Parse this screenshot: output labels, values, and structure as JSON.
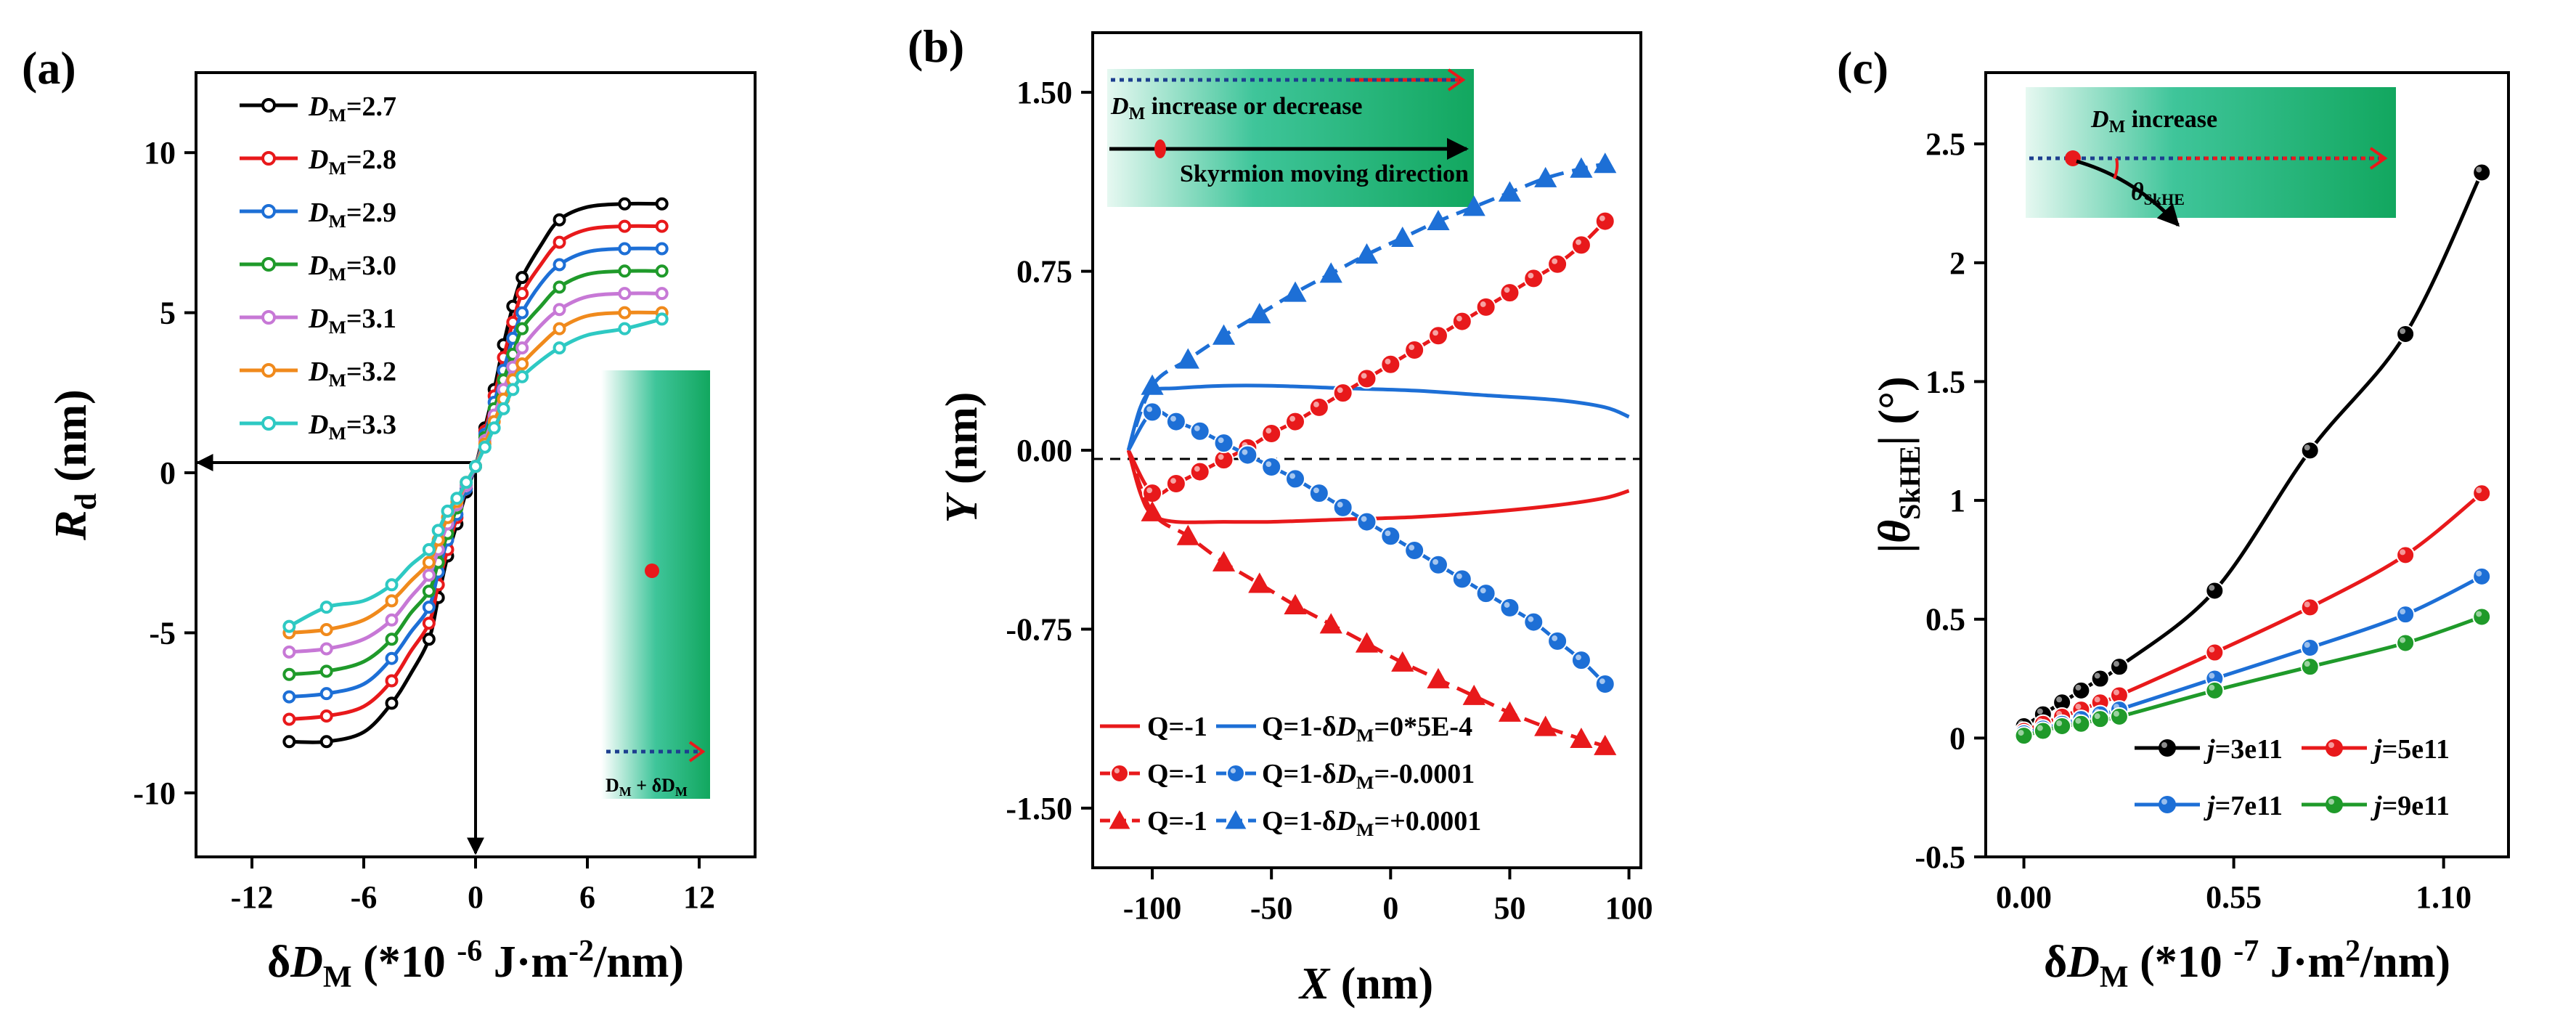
{
  "figure": {
    "panel_a": "(a)",
    "panel_b": "(b)",
    "panel_c": "(c)"
  },
  "chart_data": [
    {
      "type": "line",
      "panel": "(a)",
      "xlabel": "δD_M (*10^-6 J·m^-2/nm)",
      "ylabel": "R_d (nm)",
      "xlim": [
        -15,
        15
      ],
      "ylim": [
        -12,
        12.5
      ],
      "xticks": [
        -12,
        -6,
        0,
        6,
        12
      ],
      "yticks": [
        -10,
        -5,
        0,
        5,
        10
      ],
      "x": [
        -10,
        -8,
        -6,
        -4.5,
        -3.5,
        -2.5,
        -2,
        -1.5,
        -1,
        -0.5,
        0,
        0.5,
        1,
        1.5,
        2,
        2.5,
        3.5,
        4.5,
        6,
        8,
        10
      ],
      "series": [
        {
          "name": "D_M=2.7",
          "color": "#000000",
          "values": [
            -8.4,
            -8.4,
            -8.1,
            -7.2,
            -6.3,
            -5.2,
            -3.9,
            -2.6,
            -1.6,
            -0.6,
            0.2,
            1.4,
            2.6,
            4.0,
            5.2,
            6.1,
            7.1,
            7.9,
            8.3,
            8.4,
            8.4
          ]
        },
        {
          "name": "D_M=2.8",
          "color": "#e8191b",
          "values": [
            -7.7,
            -7.6,
            -7.3,
            -6.5,
            -5.6,
            -4.7,
            -3.5,
            -2.4,
            -1.4,
            -0.5,
            0.2,
            1.3,
            2.4,
            3.6,
            4.7,
            5.6,
            6.5,
            7.2,
            7.6,
            7.7,
            7.7
          ]
        },
        {
          "name": "D_M=2.9",
          "color": "#1d6fd6",
          "values": [
            -7.0,
            -6.9,
            -6.6,
            -5.8,
            -5.0,
            -4.2,
            -3.1,
            -2.1,
            -1.3,
            -0.5,
            0.2,
            1.2,
            2.2,
            3.2,
            4.2,
            5.0,
            5.9,
            6.5,
            6.9,
            7.0,
            7.0
          ]
        },
        {
          "name": "D_M=3.0",
          "color": "#1f9a2a",
          "values": [
            -6.3,
            -6.2,
            -5.9,
            -5.2,
            -4.4,
            -3.7,
            -2.8,
            -1.9,
            -1.1,
            -0.4,
            0.2,
            1.1,
            2.0,
            2.9,
            3.7,
            4.5,
            5.2,
            5.8,
            6.2,
            6.3,
            6.3
          ]
        },
        {
          "name": "D_M=3.1",
          "color": "#c778d6",
          "values": [
            -5.6,
            -5.5,
            -5.2,
            -4.6,
            -3.9,
            -3.2,
            -2.4,
            -1.6,
            -1.0,
            -0.4,
            0.2,
            1.0,
            1.8,
            2.6,
            3.3,
            3.9,
            4.6,
            5.1,
            5.5,
            5.6,
            5.6
          ]
        },
        {
          "name": "D_M=3.2",
          "color": "#f08a1c",
          "values": [
            -5.0,
            -4.9,
            -4.6,
            -4.0,
            -3.4,
            -2.8,
            -2.1,
            -1.4,
            -0.9,
            -0.3,
            0.2,
            0.9,
            1.6,
            2.3,
            2.9,
            3.4,
            4.0,
            4.5,
            4.9,
            5.0,
            5.0
          ]
        },
        {
          "name": "D_M=3.3",
          "color": "#2ec9c3",
          "values": [
            -4.8,
            -4.2,
            -4.0,
            -3.5,
            -2.9,
            -2.4,
            -1.8,
            -1.2,
            -0.8,
            -0.3,
            0.2,
            0.8,
            1.4,
            2.0,
            2.6,
            3.0,
            3.5,
            3.9,
            4.3,
            4.5,
            4.8
          ]
        }
      ],
      "inset": {
        "label": "D_M + δD_M"
      }
    },
    {
      "type": "line",
      "panel": "(b)",
      "xlabel": "X (nm)",
      "ylabel": "Y (nm)",
      "xlim": [
        -125,
        105
      ],
      "ylim": [
        -1.75,
        1.75
      ],
      "xticks": [
        -100,
        -50,
        0,
        50,
        100
      ],
      "yticks": [
        -1.5,
        -0.75,
        0.0,
        0.75,
        1.5
      ],
      "ytick_labels": [
        "-1.50",
        "-0.75",
        "0.00",
        "0.75",
        "1.50"
      ],
      "series": [
        {
          "name": "Q=-1",
          "legend_pair": "Q=1-δD_M=0*5E-4",
          "color": "#e8191b",
          "marker": "none",
          "x": [
            -110,
            -105,
            -100,
            -90,
            -70,
            -50,
            -20,
            10,
            40,
            70,
            90,
            100
          ],
          "y": [
            0.0,
            -0.18,
            -0.27,
            -0.3,
            -0.3,
            -0.3,
            -0.29,
            -0.28,
            -0.26,
            -0.23,
            -0.2,
            -0.17
          ]
        },
        {
          "name": "Q=1-δD_M=0*5E-4",
          "color": "#1d6fd6",
          "marker": "none",
          "x": [
            -110,
            -105,
            -100,
            -90,
            -70,
            -50,
            -20,
            10,
            40,
            70,
            90,
            100
          ],
          "y": [
            0.0,
            0.18,
            0.25,
            0.26,
            0.27,
            0.27,
            0.26,
            0.25,
            0.23,
            0.21,
            0.18,
            0.14
          ]
        },
        {
          "name": "Q=-1",
          "legend_pair": "Q=1-δD_M=-0.0001",
          "color": "#e8191b",
          "marker": "circle",
          "x": [
            -110,
            -100,
            -90,
            -80,
            -70,
            -60,
            -50,
            -40,
            -30,
            -20,
            -10,
            0,
            10,
            20,
            30,
            40,
            50,
            60,
            70,
            80,
            90
          ],
          "y": [
            0.0,
            -0.18,
            -0.14,
            -0.09,
            -0.04,
            0.01,
            0.07,
            0.12,
            0.18,
            0.24,
            0.3,
            0.36,
            0.42,
            0.48,
            0.54,
            0.6,
            0.66,
            0.72,
            0.78,
            0.86,
            0.96
          ]
        },
        {
          "name": "Q=1-δD_M=-0.0001",
          "color": "#1d6fd6",
          "marker": "circle",
          "x": [
            -110,
            -100,
            -90,
            -80,
            -70,
            -60,
            -50,
            -40,
            -30,
            -20,
            -10,
            0,
            10,
            20,
            30,
            40,
            50,
            60,
            70,
            80,
            90
          ],
          "y": [
            0.0,
            0.16,
            0.12,
            0.08,
            0.03,
            -0.02,
            -0.07,
            -0.12,
            -0.18,
            -0.24,
            -0.3,
            -0.36,
            -0.42,
            -0.48,
            -0.54,
            -0.6,
            -0.66,
            -0.72,
            -0.8,
            -0.88,
            -0.98
          ]
        },
        {
          "name": "Q=-1",
          "legend_pair": "Q=1-δD_M=+0.0001",
          "color": "#e8191b",
          "marker": "triangle",
          "x": [
            -110,
            -100,
            -85,
            -70,
            -55,
            -40,
            -25,
            -10,
            5,
            20,
            35,
            50,
            65,
            80,
            90
          ],
          "y": [
            0.0,
            -0.26,
            -0.36,
            -0.47,
            -0.56,
            -0.65,
            -0.73,
            -0.81,
            -0.89,
            -0.96,
            -1.03,
            -1.1,
            -1.16,
            -1.21,
            -1.24
          ]
        },
        {
          "name": "Q=1-δD_M=+0.0001",
          "color": "#1d6fd6",
          "marker": "triangle",
          "x": [
            -110,
            -100,
            -85,
            -70,
            -55,
            -40,
            -25,
            -10,
            5,
            20,
            35,
            50,
            65,
            80,
            90
          ],
          "y": [
            0.0,
            0.27,
            0.38,
            0.48,
            0.57,
            0.66,
            0.74,
            0.82,
            0.89,
            0.96,
            1.02,
            1.08,
            1.14,
            1.18,
            1.2
          ]
        }
      ],
      "legend": [
        {
          "left": "Q=-1",
          "right": "Q=1-δD_M=0*5E-4",
          "marker": "none"
        },
        {
          "left": "Q=-1",
          "right": "Q=1-δD_M=-0.0001",
          "marker": "circle"
        },
        {
          "left": "Q=-1",
          "right": "Q=1-δD_M=+0.0001",
          "marker": "triangle"
        }
      ],
      "inset": {
        "label1": "D_M increase or decrease",
        "label2": "Skyrmion moving direction"
      }
    },
    {
      "type": "line",
      "panel": "(c)",
      "xlabel": "δD_M (*10^-7 J·m^2/nm)",
      "ylabel": "|θ_SkHE| (°)",
      "xlim": [
        -0.1,
        1.27
      ],
      "ylim": [
        -0.5,
        2.8
      ],
      "xticks": [
        0.0,
        0.55,
        1.1
      ],
      "xtick_labels": [
        "0.00",
        "0.55",
        "1.10"
      ],
      "yticks": [
        -0.5,
        0.0,
        0.5,
        1.0,
        1.5,
        2.0,
        2.5
      ],
      "x": [
        0.0,
        0.05,
        0.1,
        0.15,
        0.2,
        0.25,
        0.5,
        0.75,
        1.0,
        1.2
      ],
      "series": [
        {
          "name": "j=3e11",
          "color": "#000000",
          "values": [
            0.05,
            0.1,
            0.15,
            0.2,
            0.25,
            0.3,
            0.62,
            1.21,
            1.7,
            2.38
          ]
        },
        {
          "name": "j=5e11",
          "color": "#e8191b",
          "values": [
            0.03,
            0.06,
            0.09,
            0.12,
            0.15,
            0.18,
            0.36,
            0.55,
            0.77,
            1.03
          ]
        },
        {
          "name": "j=7e11",
          "color": "#1d6fd6",
          "values": [
            0.02,
            0.04,
            0.06,
            0.08,
            0.1,
            0.12,
            0.25,
            0.38,
            0.52,
            0.68
          ]
        },
        {
          "name": "j=9e11",
          "color": "#1f9a2a",
          "values": [
            0.01,
            0.03,
            0.05,
            0.06,
            0.08,
            0.09,
            0.2,
            0.3,
            0.4,
            0.51
          ]
        }
      ],
      "inset": {
        "label": "D_M increase",
        "angle_label": "θ_SkHE"
      }
    }
  ]
}
